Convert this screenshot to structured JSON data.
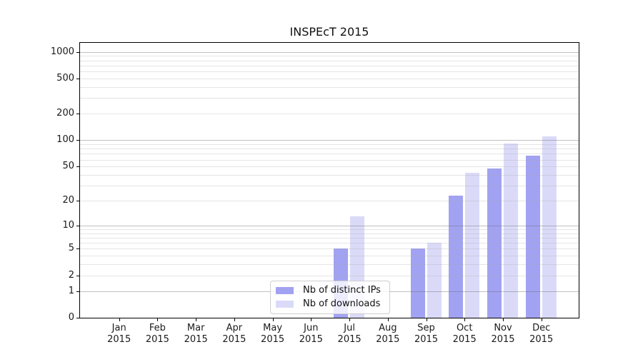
{
  "figure": {
    "background": "#ffffff",
    "text_color": "#1a1a1a"
  },
  "chart_data": {
    "type": "bar",
    "title": "INSPEcT 2015",
    "xlabel": "",
    "ylabel": "",
    "scale": "log1p",
    "grid": true,
    "legend_position": "inside-bottom-center",
    "categories": [
      "Jan",
      "Feb",
      "Mar",
      "Apr",
      "May",
      "Jun",
      "Jul",
      "Aug",
      "Sep",
      "Oct",
      "Nov",
      "Dec"
    ],
    "category_year": "2015",
    "series": [
      {
        "name": "Nb of distinct IPs",
        "color": "#a2a2f2",
        "values": [
          0,
          0,
          0,
          0,
          0,
          0,
          5,
          0,
          5,
          23,
          47,
          67
        ]
      },
      {
        "name": "Nb of downloads",
        "color": "#dadaf8",
        "values": [
          0,
          0,
          0,
          0,
          0,
          0,
          13,
          0,
          6,
          42,
          92,
          110
        ]
      }
    ],
    "yticks": [
      0,
      1,
      2,
      5,
      10,
      20,
      50,
      100,
      200,
      500,
      1000
    ],
    "ylim": [
      0,
      1265
    ]
  }
}
